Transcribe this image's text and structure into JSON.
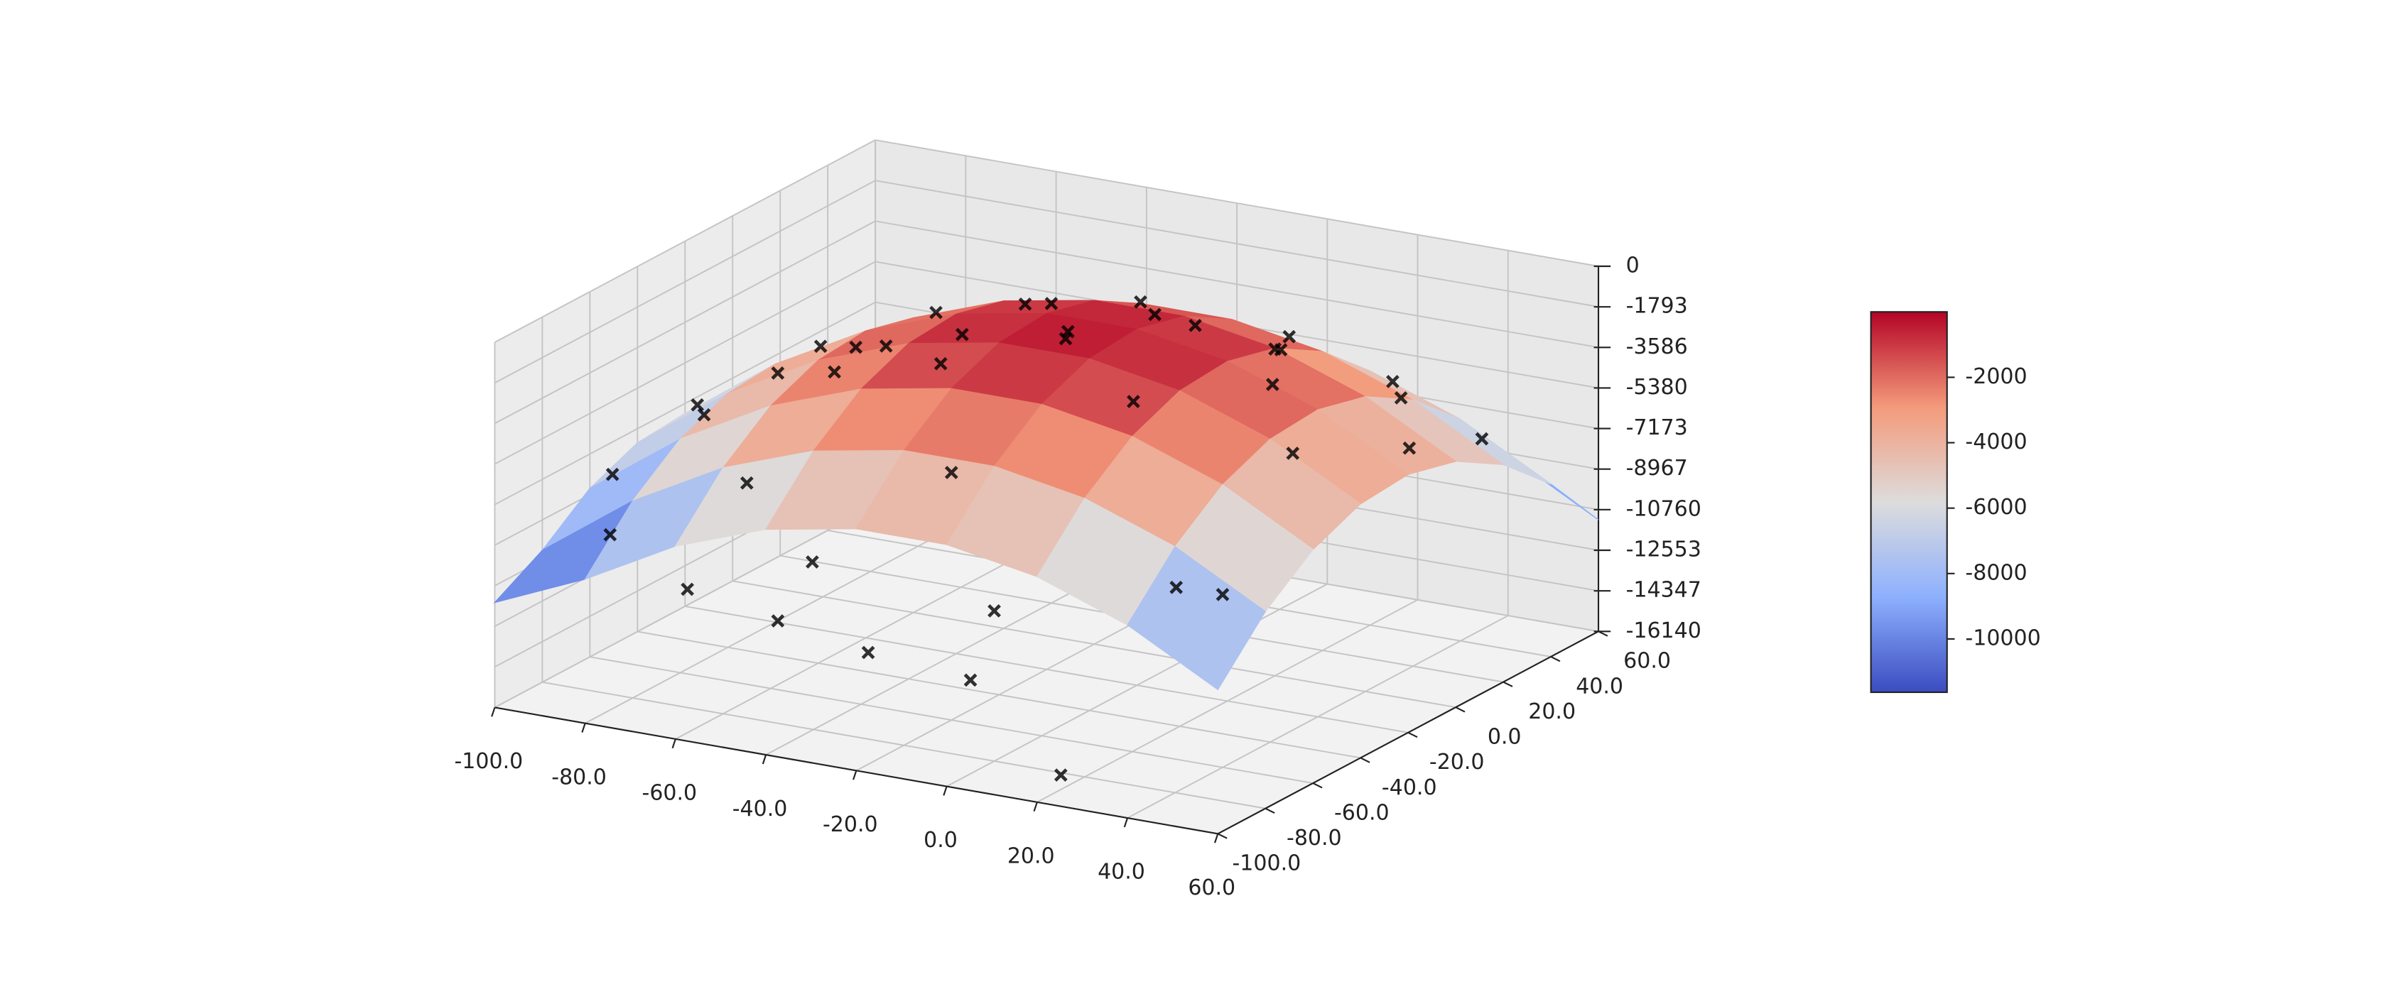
{
  "chart_data": {
    "type": "surface3d",
    "xlim": [
      -100,
      60
    ],
    "ylim": [
      -100,
      60
    ],
    "zlim": [
      -16140,
      0
    ],
    "xticks": [
      {
        "value": -100,
        "label": "-100.0"
      },
      {
        "value": -80,
        "label": "-80.0"
      },
      {
        "value": -60,
        "label": "-60.0"
      },
      {
        "value": -40,
        "label": "-40.0"
      },
      {
        "value": -20,
        "label": "-20.0"
      },
      {
        "value": 0,
        "label": "0.0"
      },
      {
        "value": 20,
        "label": "20.0"
      },
      {
        "value": 40,
        "label": "40.0"
      },
      {
        "value": 60,
        "label": "60.0"
      }
    ],
    "yticks": [
      {
        "value": -100,
        "label": "-100.0"
      },
      {
        "value": -80,
        "label": "-80.0"
      },
      {
        "value": -60,
        "label": "-60.0"
      },
      {
        "value": -40,
        "label": "-40.0"
      },
      {
        "value": -20,
        "label": "-20.0"
      },
      {
        "value": 0,
        "label": "0.0"
      },
      {
        "value": 20,
        "label": "20.0"
      },
      {
        "value": 40,
        "label": "40.0"
      },
      {
        "value": 60,
        "label": "60.0"
      }
    ],
    "zticks": [
      0,
      -1793,
      -3586,
      -5380,
      -7173,
      -8967,
      -10760,
      -12553,
      -14347,
      -16140
    ],
    "grid": true,
    "surface": {
      "colormap": "coolwarm",
      "x": [
        -100,
        -80,
        -60,
        -40,
        -20,
        0,
        20,
        40,
        60
      ],
      "y": [
        -100,
        -80,
        -60,
        -40,
        -20,
        0,
        20,
        40,
        60
      ],
      "z": [
        [
          -11500,
          -9770,
          -7610,
          -6170,
          -5450,
          -5450,
          -6170,
          -7610,
          -9770
        ],
        [
          -10310,
          -7430,
          -5270,
          -3830,
          -3110,
          -3110,
          -3830,
          -5270,
          -7430
        ],
        [
          -8690,
          -5810,
          -3650,
          -2210,
          -1490,
          -1490,
          -2210,
          -3650,
          -5810
        ],
        [
          -7790,
          -4910,
          -2750,
          -1310,
          -590,
          -590,
          -1310,
          -2750,
          -4910
        ],
        [
          -7610,
          -4730,
          -2570,
          -1130,
          -410,
          -410,
          -1130,
          -2570,
          -4730
        ],
        [
          -8150,
          -5270,
          -3110,
          -1670,
          -950,
          -950,
          -1670,
          -3110,
          -5270
        ],
        [
          -9410,
          -6530,
          -4370,
          -2930,
          -2210,
          -2210,
          -2930,
          -4370,
          -6530
        ],
        [
          -11390,
          -8510,
          -6350,
          -4910,
          -4190,
          -4190,
          -4910,
          -6350,
          -8510
        ],
        [
          -11500,
          -11210,
          -9050,
          -7610,
          -6890,
          -6890,
          -7610,
          -9050,
          -11210
        ]
      ]
    },
    "scatter": {
      "marker": "x",
      "color": "#000000",
      "x": [
        -95,
        -92,
        -90,
        -88,
        -85,
        -80,
        -78,
        -75,
        -70,
        -65,
        -60,
        -55,
        -50,
        -45,
        -40,
        -35,
        -30,
        -25,
        -20,
        -15,
        -10,
        -5,
        0,
        5,
        10,
        15,
        20,
        25,
        30,
        35,
        40,
        45,
        50,
        55,
        -60,
        -40,
        -20,
        0,
        20,
        40
      ],
      "y": [
        -60,
        -30,
        0,
        20,
        -80,
        -50,
        10,
        40,
        -20,
        30,
        -70,
        0,
        45,
        -40,
        20,
        -90,
        -10,
        35,
        -60,
        10,
        -30,
        50,
        -80,
        -5,
        25,
        -50,
        0,
        40,
        -20,
        -70,
        15,
        -40,
        30,
        -10,
        -95,
        -95,
        -95,
        -90,
        -90,
        -60
      ],
      "z": [
        -7900,
        -6400,
        -6600,
        -7600,
        -9100,
        -5300,
        -5600,
        -7900,
        -3600,
        -5700,
        -6500,
        -2700,
        -6200,
        -1600,
        -2900,
        -8000,
        -900,
        -3700,
        -5200,
        -1400,
        -300,
        -5400,
        -9500,
        -900,
        -2900,
        -1400,
        -1700,
        -5200,
        -1800,
        -7800,
        -4000,
        -3200,
        -6300,
        -4300,
        -9800,
        -10500,
        -11200,
        -12000,
        -15500,
        -8500
      ]
    },
    "colorbar": {
      "clim": [
        -11630,
        0
      ],
      "ticks": [
        -2000,
        -4000,
        -6000,
        -8000,
        -10000
      ]
    }
  }
}
